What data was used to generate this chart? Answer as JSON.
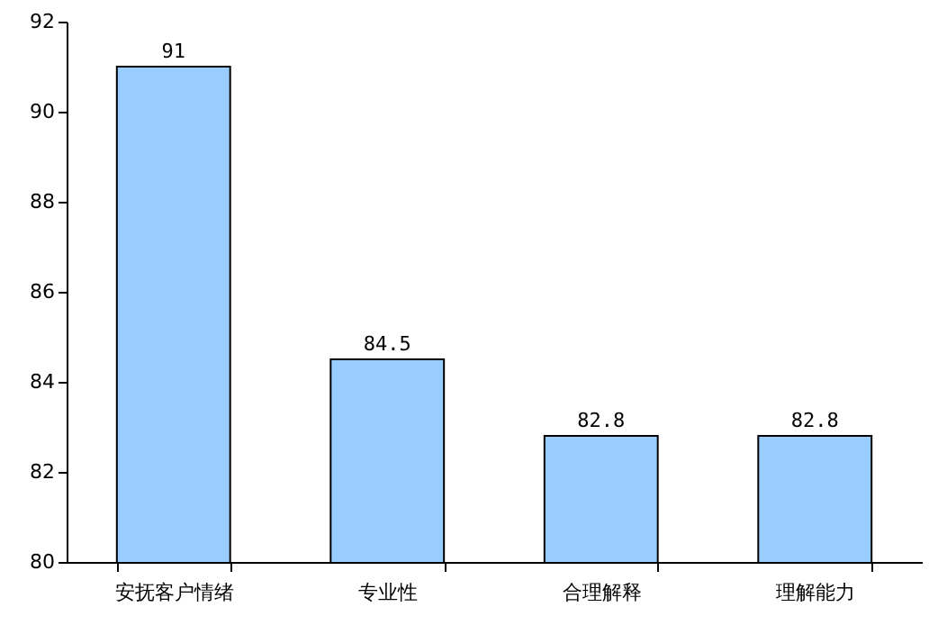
{
  "chart_data": {
    "type": "bar",
    "categories": [
      "安抚客户情绪",
      "专业性",
      "合理解释",
      "理解能力"
    ],
    "values": [
      91,
      84.5,
      82.8,
      82.8
    ],
    "color": "#99ccff",
    "ylim": [
      80,
      92
    ],
    "yticks": [
      80,
      82,
      84,
      86,
      88,
      90,
      92
    ],
    "grid": false,
    "data_labels": true
  }
}
